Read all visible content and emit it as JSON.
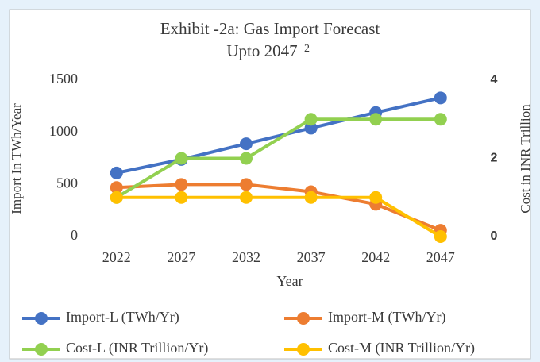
{
  "chart_data": {
    "type": "line",
    "title": [
      "Exhibit -2a: Gas Import Forecast",
      "Upto 2047"
    ],
    "title_note": "2",
    "x_label": "Year",
    "y_label": "Import In TWh/Year",
    "y2_label": "Cost in INR Trillion",
    "categories": [
      "2022",
      "2027",
      "2032",
      "2037",
      "2042",
      "2047"
    ],
    "series": [
      {
        "name": "Import-L (TWh/Yr)",
        "color": "#4472c4",
        "values": [
          610,
          740,
          890,
          1040,
          1190,
          1330
        ]
      },
      {
        "name": "Import-M (TWh/Yr)",
        "color": "#ed7d31",
        "values": [
          470,
          500,
          500,
          430,
          310,
          60
        ]
      },
      {
        "name": "Cost-L (INR Trillion/Yr)",
        "color": "#92d050",
        "axis": "y2",
        "values": [
          1,
          2,
          2,
          3,
          3,
          3
        ]
      },
      {
        "name": "Cost-M (INR Trillion/Yr)",
        "color": "#ffc000",
        "axis": "y2",
        "values": [
          1,
          1,
          1,
          1,
          1,
          0
        ]
      }
    ],
    "ylim": [
      0,
      1500
    ],
    "yticks": [
      0,
      500,
      1000,
      1500
    ],
    "y2lim": [
      0,
      4
    ],
    "y2ticks": [
      0,
      2,
      4
    ],
    "grid": false,
    "legend": "bottom"
  }
}
